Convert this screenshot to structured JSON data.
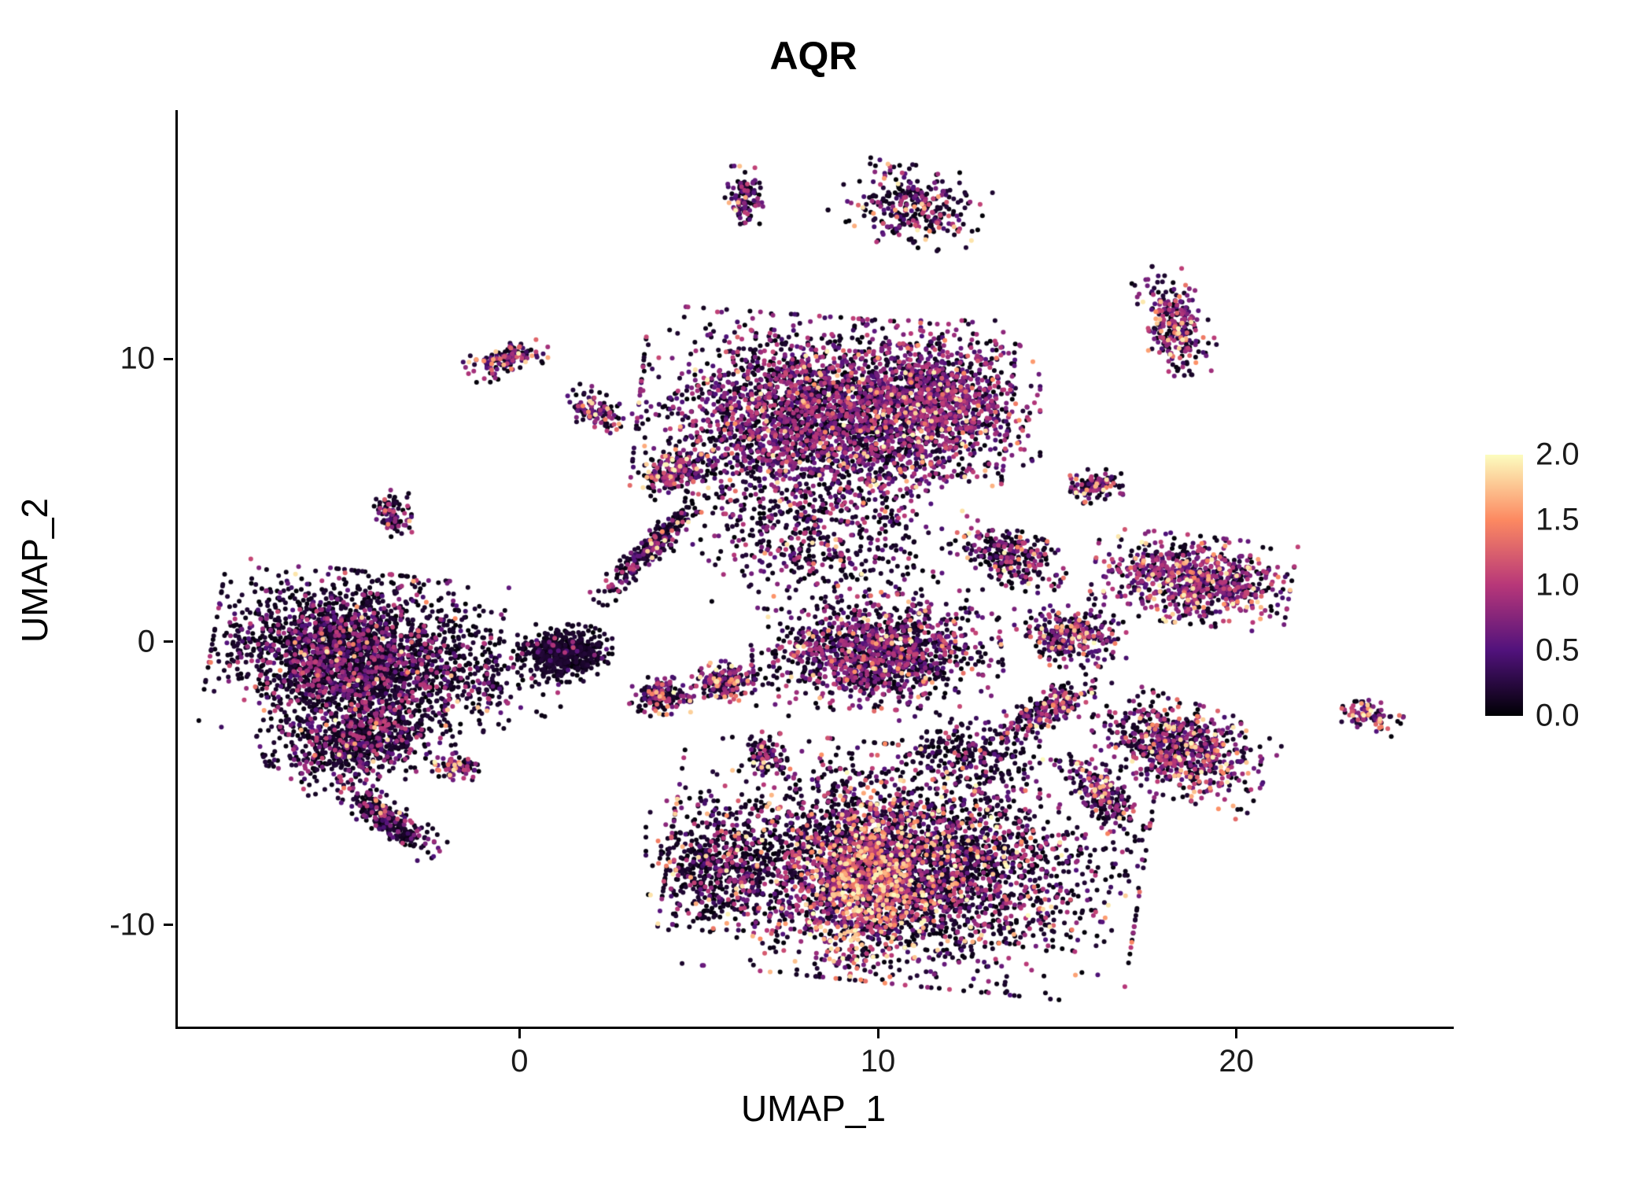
{
  "title": "AQR",
  "axes": {
    "xlabel": "UMAP_1",
    "ylabel": "UMAP_2",
    "x_ticks": [
      0,
      10,
      20
    ],
    "y_ticks": [
      -10,
      0,
      10
    ],
    "x_range": [
      -9.6,
      26.0
    ],
    "y_range": [
      -13.6,
      18.8
    ]
  },
  "legend": {
    "ticks": [
      "2.0",
      "1.5",
      "1.0",
      "0.5",
      "0.0"
    ],
    "vmin": 0.0,
    "vmax": 2.0,
    "colormap": "magma",
    "stops": [
      "#000004",
      "#51127c",
      "#b73779",
      "#fc8961",
      "#fcfdbf"
    ]
  },
  "chart_data": {
    "type": "scatter",
    "title": "AQR",
    "xlabel": "UMAP_1",
    "ylabel": "UMAP_2",
    "xlim": [
      -9.6,
      26.0
    ],
    "ylim": [
      -13.6,
      18.8
    ],
    "point_radius_px": 3,
    "color_scale": {
      "vmin": 0.0,
      "vmax": 2.0,
      "stops": [
        "#000004",
        "#51127c",
        "#b73779",
        "#fc8961",
        "#fcfdbf"
      ]
    },
    "clusters": [
      {
        "name": "left-main",
        "cx": -4.7,
        "cy": -0.5,
        "rx": 3.3,
        "ry": 2.5,
        "angle": -8,
        "n": 2600,
        "p": [
          0.74,
          0.24,
          0.02
        ]
      },
      {
        "name": "left-lower",
        "cx": -4.6,
        "cy": -3.6,
        "rx": 2.2,
        "ry": 1.3,
        "angle": 15,
        "n": 700,
        "p": [
          0.7,
          0.27,
          0.03
        ]
      },
      {
        "name": "left-tail",
        "cx": -3.8,
        "cy": -6.2,
        "rx": 1.6,
        "ry": 0.5,
        "angle": -42,
        "n": 280,
        "p": [
          0.72,
          0.25,
          0.03
        ]
      },
      {
        "name": "left-satellite",
        "cx": -1.8,
        "cy": -4.4,
        "rx": 0.6,
        "ry": 0.4,
        "angle": 0,
        "n": 80,
        "p": [
          0.55,
          0.3,
          0.15
        ]
      },
      {
        "name": "left-tiny-upper",
        "cx": -3.6,
        "cy": 4.4,
        "rx": 0.5,
        "ry": 0.8,
        "angle": 10,
        "n": 90,
        "p": [
          0.6,
          0.35,
          0.05
        ]
      },
      {
        "name": "top-main",
        "cx": 8.4,
        "cy": 7.9,
        "rx": 4.3,
        "ry": 3.0,
        "angle": -5,
        "n": 2900,
        "p": [
          0.48,
          0.47,
          0.05
        ]
      },
      {
        "name": "top-main-right",
        "cx": 11.7,
        "cy": 8.6,
        "rx": 2.3,
        "ry": 2.3,
        "angle": 0,
        "n": 950,
        "p": [
          0.38,
          0.55,
          0.07
        ]
      },
      {
        "name": "top-below-scatter",
        "cx": 8.2,
        "cy": 3.6,
        "rx": 3.2,
        "ry": 2.2,
        "angle": -10,
        "n": 500,
        "p": [
          0.62,
          0.34,
          0.04
        ]
      },
      {
        "name": "mid-cluster",
        "cx": 9.9,
        "cy": -0.4,
        "rx": 2.9,
        "ry": 1.7,
        "angle": 4,
        "n": 1350,
        "p": [
          0.52,
          0.42,
          0.06
        ]
      },
      {
        "name": "mid-hook",
        "cx": 13.6,
        "cy": 3.0,
        "rx": 1.4,
        "ry": 0.8,
        "angle": -25,
        "n": 280,
        "p": [
          0.55,
          0.38,
          0.07
        ]
      },
      {
        "name": "bottom-main",
        "cx": 10.7,
        "cy": -7.9,
        "rx": 5.5,
        "ry": 3.5,
        "angle": -7,
        "n": 3400,
        "p": [
          0.64,
          0.28,
          0.08
        ]
      },
      {
        "name": "bottom-bright",
        "cx": 9.7,
        "cy": -8.5,
        "rx": 1.9,
        "ry": 2.5,
        "angle": -18,
        "n": 950,
        "p": [
          0.14,
          0.44,
          0.42
        ]
      },
      {
        "name": "bottom-left",
        "cx": 5.5,
        "cy": -7.9,
        "rx": 1.7,
        "ry": 1.9,
        "angle": 0,
        "n": 520,
        "p": [
          0.72,
          0.24,
          0.04
        ]
      },
      {
        "name": "bottom-upper-sparse",
        "cx": 12.6,
        "cy": -3.9,
        "rx": 1.9,
        "ry": 1.0,
        "angle": -10,
        "n": 220,
        "p": [
          0.76,
          0.21,
          0.03
        ]
      },
      {
        "name": "right-upper",
        "cx": 18.7,
        "cy": 2.2,
        "rx": 2.3,
        "ry": 1.3,
        "angle": -8,
        "n": 820,
        "p": [
          0.36,
          0.52,
          0.12
        ]
      },
      {
        "name": "right-mid-small",
        "cx": 15.3,
        "cy": 0.2,
        "rx": 1.3,
        "ry": 0.9,
        "angle": 0,
        "n": 300,
        "p": [
          0.5,
          0.4,
          0.1
        ]
      },
      {
        "name": "right-lower",
        "cx": 18.3,
        "cy": -3.8,
        "rx": 2.2,
        "ry": 1.4,
        "angle": -22,
        "n": 720,
        "p": [
          0.46,
          0.41,
          0.13
        ]
      },
      {
        "name": "right-lower-tail",
        "cx": 16.2,
        "cy": -5.4,
        "rx": 1.4,
        "ry": 0.6,
        "angle": -48,
        "n": 200,
        "p": [
          0.5,
          0.4,
          0.1
        ]
      },
      {
        "name": "bridge-bottom-right",
        "cx": 14.7,
        "cy": -2.4,
        "rx": 1.4,
        "ry": 0.6,
        "angle": 38,
        "n": 220,
        "p": [
          0.48,
          0.4,
          0.12
        ]
      },
      {
        "name": "top-right-diag",
        "cx": 18.2,
        "cy": 11.2,
        "rx": 0.8,
        "ry": 1.8,
        "angle": 15,
        "n": 270,
        "p": [
          0.42,
          0.43,
          0.15
        ]
      },
      {
        "name": "far-right-small",
        "cx": 23.6,
        "cy": -2.6,
        "rx": 0.8,
        "ry": 0.45,
        "angle": -18,
        "n": 90,
        "p": [
          0.25,
          0.4,
          0.35
        ]
      },
      {
        "name": "top-center-shape",
        "cx": 10.9,
        "cy": 15.4,
        "rx": 1.9,
        "ry": 1.2,
        "angle": -12,
        "n": 300,
        "p": [
          0.6,
          0.3,
          0.1
        ]
      },
      {
        "name": "top-small",
        "cx": 6.2,
        "cy": 15.6,
        "rx": 0.45,
        "ry": 1.0,
        "angle": -5,
        "n": 110,
        "p": [
          0.52,
          0.42,
          0.06
        ]
      },
      {
        "name": "upper-left-1",
        "cx": -0.4,
        "cy": 10.0,
        "rx": 1.0,
        "ry": 0.5,
        "angle": 20,
        "n": 130,
        "p": [
          0.42,
          0.4,
          0.18
        ]
      },
      {
        "name": "upper-left-2",
        "cx": 2.0,
        "cy": 8.2,
        "rx": 0.8,
        "ry": 0.55,
        "angle": -35,
        "n": 115,
        "p": [
          0.45,
          0.4,
          0.15
        ]
      },
      {
        "name": "center-dark",
        "cx": 1.2,
        "cy": -0.4,
        "rx": 1.1,
        "ry": 0.85,
        "angle": 0,
        "n": 480,
        "p": [
          0.93,
          0.07,
          0.0
        ]
      },
      {
        "name": "center-left-sparse",
        "cx": -1.2,
        "cy": -1.4,
        "rx": 1.9,
        "ry": 1.5,
        "angle": 0,
        "n": 170,
        "p": [
          0.82,
          0.16,
          0.02
        ]
      },
      {
        "name": "center-small-1",
        "cx": 3.9,
        "cy": -1.9,
        "rx": 0.75,
        "ry": 0.6,
        "angle": 0,
        "n": 160,
        "p": [
          0.62,
          0.3,
          0.08
        ]
      },
      {
        "name": "center-small-2",
        "cx": 5.7,
        "cy": -1.4,
        "rx": 0.85,
        "ry": 0.6,
        "angle": 0,
        "n": 190,
        "p": [
          0.5,
          0.35,
          0.15
        ]
      },
      {
        "name": "center-tiny",
        "cx": 6.8,
        "cy": -4.0,
        "rx": 0.5,
        "ry": 0.55,
        "angle": 0,
        "n": 90,
        "p": [
          0.55,
          0.38,
          0.07
        ]
      },
      {
        "name": "stream-diag",
        "cx": 3.6,
        "cy": 3.3,
        "rx": 2.0,
        "ry": 0.35,
        "angle": 52,
        "n": 280,
        "p": [
          0.72,
          0.25,
          0.03
        ]
      },
      {
        "name": "stream-top",
        "cx": 4.3,
        "cy": 6.0,
        "rx": 1.0,
        "ry": 0.6,
        "angle": 28,
        "n": 210,
        "p": [
          0.46,
          0.4,
          0.14
        ]
      },
      {
        "name": "right-tiny-upper",
        "cx": 15.9,
        "cy": 5.5,
        "rx": 0.75,
        "ry": 0.5,
        "angle": 0,
        "n": 110,
        "p": [
          0.55,
          0.35,
          0.1
        ]
      }
    ]
  }
}
